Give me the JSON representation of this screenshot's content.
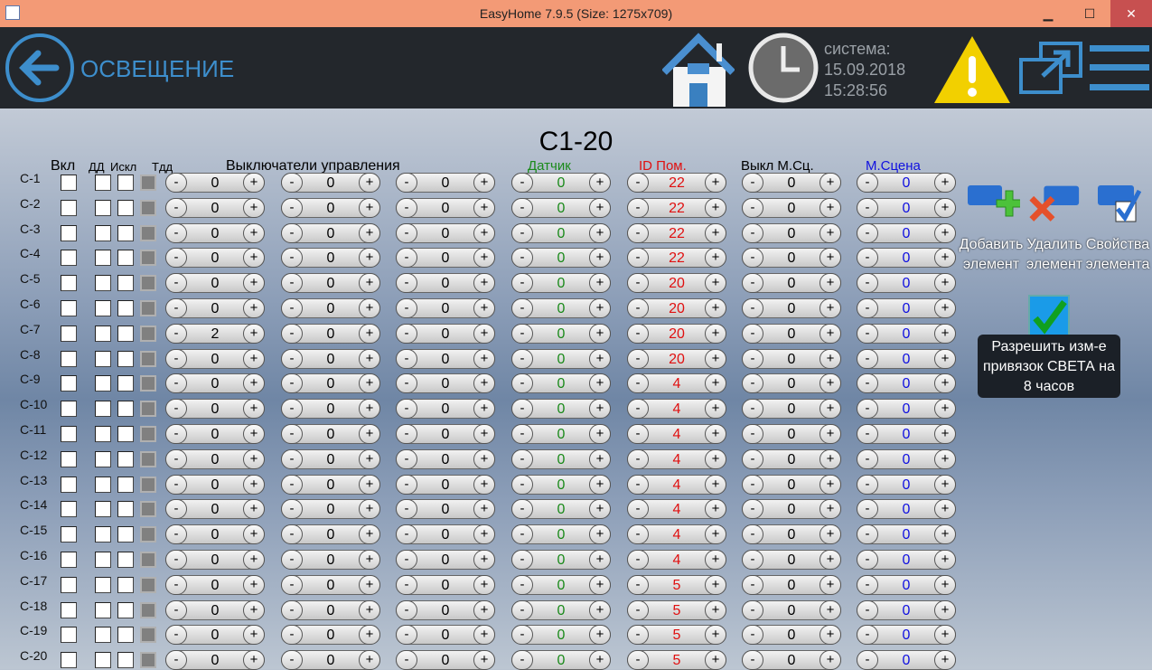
{
  "window": {
    "title": "EasyHome 7.9.5 (Size: 1275x709)",
    "minimize": "▁",
    "maximize": "☐",
    "close": "✕"
  },
  "header": {
    "title": "ОСВЕЩЕНИЕ",
    "system_label": "система:",
    "date": "15.09.2018",
    "time": "15:28:56"
  },
  "group_title": "С1-20",
  "columns": {
    "on": "Вкл",
    "dd": "ДД",
    "excl": "Искл",
    "tdd": "Тдд",
    "switches": "Выключатели управления",
    "sensor": "Датчик",
    "room_id": "ID Пом.",
    "msc_switch": "Выкл М.Сц.",
    "mscene": "М.Сцена"
  },
  "colors": {
    "sensor": "#1a8a1a",
    "room_id": "#e01010",
    "mscene": "#1010e0",
    "accent": "#3d8ecc"
  },
  "stepper": {
    "minus": "-",
    "plus": "+"
  },
  "rows": [
    {
      "label": "С-1",
      "sw": [
        0,
        0,
        0
      ],
      "sensor": 0,
      "id": 22,
      "msc": 0,
      "ms": 0
    },
    {
      "label": "С-2",
      "sw": [
        0,
        0,
        0
      ],
      "sensor": 0,
      "id": 22,
      "msc": 0,
      "ms": 0
    },
    {
      "label": "С-3",
      "sw": [
        0,
        0,
        0
      ],
      "sensor": 0,
      "id": 22,
      "msc": 0,
      "ms": 0
    },
    {
      "label": "С-4",
      "sw": [
        0,
        0,
        0
      ],
      "sensor": 0,
      "id": 22,
      "msc": 0,
      "ms": 0
    },
    {
      "label": "С-5",
      "sw": [
        0,
        0,
        0
      ],
      "sensor": 0,
      "id": 20,
      "msc": 0,
      "ms": 0
    },
    {
      "label": "С-6",
      "sw": [
        0,
        0,
        0
      ],
      "sensor": 0,
      "id": 20,
      "msc": 0,
      "ms": 0
    },
    {
      "label": "С-7",
      "sw": [
        2,
        0,
        0
      ],
      "sensor": 0,
      "id": 20,
      "msc": 0,
      "ms": 0
    },
    {
      "label": "С-8",
      "sw": [
        0,
        0,
        0
      ],
      "sensor": 0,
      "id": 20,
      "msc": 0,
      "ms": 0
    },
    {
      "label": "С-9",
      "sw": [
        0,
        0,
        0
      ],
      "sensor": 0,
      "id": 4,
      "msc": 0,
      "ms": 0
    },
    {
      "label": "С-10",
      "sw": [
        0,
        0,
        0
      ],
      "sensor": 0,
      "id": 4,
      "msc": 0,
      "ms": 0
    },
    {
      "label": "С-11",
      "sw": [
        0,
        0,
        0
      ],
      "sensor": 0,
      "id": 4,
      "msc": 0,
      "ms": 0
    },
    {
      "label": "С-12",
      "sw": [
        0,
        0,
        0
      ],
      "sensor": 0,
      "id": 4,
      "msc": 0,
      "ms": 0
    },
    {
      "label": "С-13",
      "sw": [
        0,
        0,
        0
      ],
      "sensor": 0,
      "id": 4,
      "msc": 0,
      "ms": 0
    },
    {
      "label": "С-14",
      "sw": [
        0,
        0,
        0
      ],
      "sensor": 0,
      "id": 4,
      "msc": 0,
      "ms": 0
    },
    {
      "label": "С-15",
      "sw": [
        0,
        0,
        0
      ],
      "sensor": 0,
      "id": 4,
      "msc": 0,
      "ms": 0
    },
    {
      "label": "С-16",
      "sw": [
        0,
        0,
        0
      ],
      "sensor": 0,
      "id": 4,
      "msc": 0,
      "ms": 0
    },
    {
      "label": "С-17",
      "sw": [
        0,
        0,
        0
      ],
      "sensor": 0,
      "id": 5,
      "msc": 0,
      "ms": 0
    },
    {
      "label": "С-18",
      "sw": [
        0,
        0,
        0
      ],
      "sensor": 0,
      "id": 5,
      "msc": 0,
      "ms": 0
    },
    {
      "label": "С-19",
      "sw": [
        0,
        0,
        0
      ],
      "sensor": 0,
      "id": 5,
      "msc": 0,
      "ms": 0
    },
    {
      "label": "С-20",
      "sw": [
        0,
        0,
        0
      ],
      "sensor": 0,
      "id": 5,
      "msc": 0,
      "ms": 0
    }
  ],
  "tools": {
    "add": "Добавить элемент",
    "delete": "Удалить элемент",
    "props": "Свойства элемента",
    "permit": "Разрешить изм-е привязок СВЕТА на 8 часов"
  }
}
